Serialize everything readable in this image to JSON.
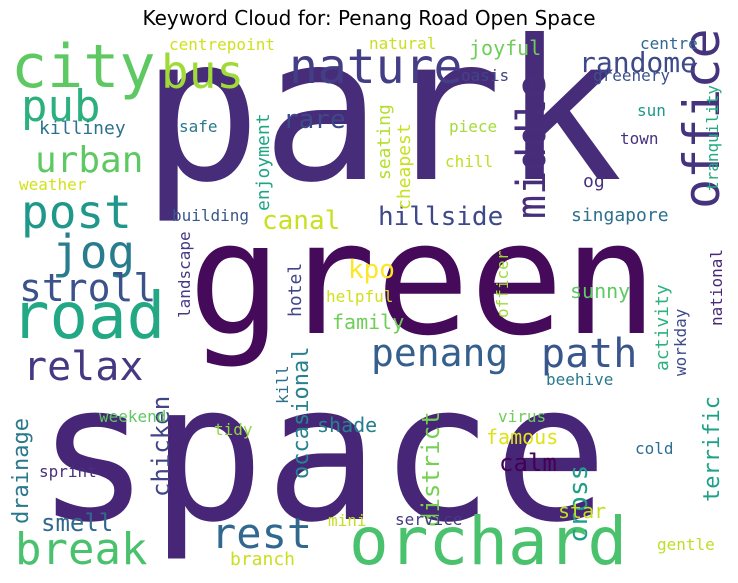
{
  "title": "Keyword Cloud for: Penang Road Open Space",
  "words": [
    {
      "text": "park",
      "color": "#472c7a"
    },
    {
      "text": "green",
      "color": "#450b5a"
    },
    {
      "text": "space",
      "color": "#482677"
    },
    {
      "text": "city",
      "color": "#5ec962"
    },
    {
      "text": "road",
      "color": "#22a884"
    },
    {
      "text": "orchard",
      "color": "#4ac16d"
    },
    {
      "text": "nature",
      "color": "#433e85"
    },
    {
      "text": "bus",
      "color": "#a0da39"
    },
    {
      "text": "pub",
      "color": "#2cb17e"
    },
    {
      "text": "post",
      "color": "#1f988b"
    },
    {
      "text": "jog",
      "color": "#297b8e"
    },
    {
      "text": "urban",
      "color": "#5ec962"
    },
    {
      "text": "stroll",
      "color": "#3b528b"
    },
    {
      "text": "relax",
      "color": "#443983"
    },
    {
      "text": "penang",
      "color": "#355f8d"
    },
    {
      "text": "path",
      "color": "#39568c"
    },
    {
      "text": "rest",
      "color": "#31688e"
    },
    {
      "text": "break",
      "color": "#4ac16d"
    },
    {
      "text": "office",
      "color": "#46337e"
    },
    {
      "text": "middle",
      "color": "#472d7b"
    },
    {
      "text": "randome",
      "color": "#3e4989"
    },
    {
      "text": "hillside",
      "color": "#3e4989"
    },
    {
      "text": "canal",
      "color": "#c8e020"
    },
    {
      "text": "rare",
      "color": "#3e4989"
    },
    {
      "text": "kpo",
      "color": "#fde725"
    },
    {
      "text": "cross",
      "color": "#1f9e89"
    },
    {
      "text": "calm",
      "color": "#440154"
    },
    {
      "text": "district",
      "color": "#75d054"
    },
    {
      "text": "occasional",
      "color": "#26828e"
    },
    {
      "text": "chicken",
      "color": "#414487"
    },
    {
      "text": "drainage",
      "color": "#2a788e"
    },
    {
      "text": "smell",
      "color": "#31688e"
    },
    {
      "text": "terrific",
      "color": "#1fa187"
    },
    {
      "text": "famous",
      "color": "#dde318"
    },
    {
      "text": "shade",
      "color": "#277f8e"
    },
    {
      "text": "star",
      "color": "#c2df23"
    },
    {
      "text": "family",
      "color": "#6ece58"
    },
    {
      "text": "sunny",
      "color": "#5ec962"
    },
    {
      "text": "singapore",
      "color": "#2d708e"
    },
    {
      "text": "killiney",
      "color": "#2c728e"
    },
    {
      "text": "joyful",
      "color": "#6ece58"
    },
    {
      "text": "seating",
      "color": "#b5de2b"
    },
    {
      "text": "cheapest",
      "color": "#c8e020"
    },
    {
      "text": "enjoyment",
      "color": "#20a486"
    },
    {
      "text": "activity",
      "color": "#2db27d"
    },
    {
      "text": "hotel",
      "color": "#404688"
    },
    {
      "text": "og",
      "color": "#46327e"
    },
    {
      "text": "centrepoint",
      "color": "#d0e11c"
    },
    {
      "text": "natural",
      "color": "#c8e020"
    },
    {
      "text": "oasis",
      "color": "#414487"
    },
    {
      "text": "centre",
      "color": "#31688e"
    },
    {
      "text": "greenery",
      "color": "#3b528b"
    },
    {
      "text": "safe",
      "color": "#2a788e"
    },
    {
      "text": "piece",
      "color": "#a5db36"
    },
    {
      "text": "chill",
      "color": "#c0df25"
    },
    {
      "text": "sun",
      "color": "#1f988b"
    },
    {
      "text": "town",
      "color": "#46337e"
    },
    {
      "text": "tranquility",
      "color": "#25ab82"
    },
    {
      "text": "weather",
      "color": "#d2e21b"
    },
    {
      "text": "building",
      "color": "#38588c"
    },
    {
      "text": "landscape",
      "color": "#443983"
    },
    {
      "text": "officer",
      "color": "#a0da39"
    },
    {
      "text": "national",
      "color": "#482878"
    },
    {
      "text": "workday",
      "color": "#3e4a89"
    },
    {
      "text": "helpful",
      "color": "#d0e11c"
    },
    {
      "text": "beehive",
      "color": "#2a788e"
    },
    {
      "text": "kill",
      "color": "#2e6f8e"
    },
    {
      "text": "weekend",
      "color": "#5ec962"
    },
    {
      "text": "tidy",
      "color": "#90d743"
    },
    {
      "text": "virus",
      "color": "#6ece58"
    },
    {
      "text": "cold",
      "color": "#2e6e8e"
    },
    {
      "text": "sprint",
      "color": "#46307e"
    },
    {
      "text": "mini",
      "color": "#c2df23"
    },
    {
      "text": "service",
      "color": "#443a83"
    },
    {
      "text": "gentle",
      "color": "#bddf26"
    },
    {
      "text": "branch",
      "color": "#c8e020"
    }
  ]
}
